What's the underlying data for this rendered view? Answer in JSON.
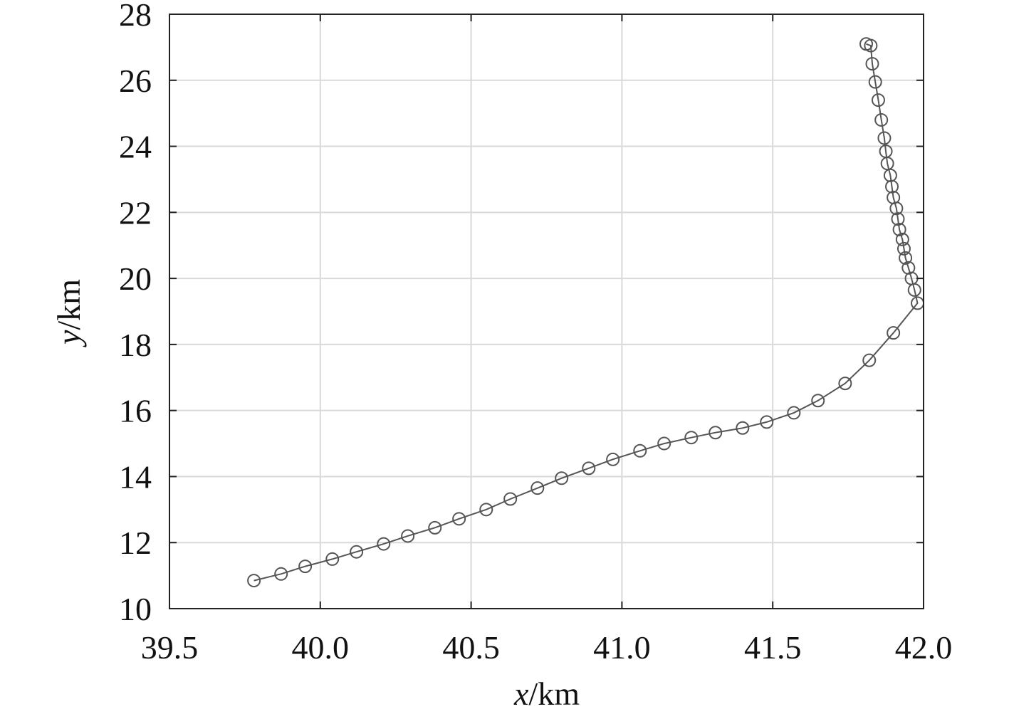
{
  "chart_data": {
    "type": "line",
    "title": "",
    "xlabel_var": "x",
    "xlabel_unit": "/km",
    "ylabel_var": "y",
    "ylabel_unit": "/km",
    "xlim": [
      39.5,
      42.0
    ],
    "ylim": [
      10,
      28
    ],
    "xticks": [
      "39.5",
      "40.0",
      "40.5",
      "41.0",
      "41.5",
      "42.0"
    ],
    "yticks": [
      "10",
      "12",
      "14",
      "16",
      "18",
      "20",
      "22",
      "24",
      "26",
      "28"
    ],
    "grid": true,
    "legend": "none",
    "colors": {
      "line": "#555555",
      "grid": "#d9d9d9",
      "axis": "#222222"
    },
    "series": [
      {
        "marker": "circle",
        "x": [
          39.78,
          39.87,
          39.95,
          40.04,
          40.12,
          40.21,
          40.29,
          40.38,
          40.46,
          40.55,
          40.63,
          40.72,
          40.8,
          40.89,
          40.97,
          41.06,
          41.14,
          41.23,
          41.31,
          41.4,
          41.48,
          41.57,
          41.65,
          41.74,
          41.82,
          41.9,
          41.98,
          41.97,
          41.96,
          41.95,
          41.94,
          41.935,
          41.93,
          41.92,
          41.915,
          41.91,
          41.9,
          41.895,
          41.89,
          41.88,
          41.875,
          41.87,
          41.86,
          41.85,
          41.84,
          41.83,
          41.825,
          41.81
        ],
        "y": [
          10.85,
          11.05,
          11.28,
          11.5,
          11.72,
          11.96,
          12.2,
          12.45,
          12.72,
          13.0,
          13.32,
          13.65,
          13.95,
          14.25,
          14.52,
          14.78,
          15.0,
          15.18,
          15.33,
          15.47,
          15.65,
          15.93,
          16.3,
          16.82,
          17.52,
          18.35,
          19.25,
          19.65,
          20.0,
          20.32,
          20.62,
          20.9,
          21.18,
          21.48,
          21.8,
          22.12,
          22.45,
          22.78,
          23.12,
          23.48,
          23.85,
          24.25,
          24.8,
          25.4,
          25.95,
          26.5,
          27.05,
          27.1
        ]
      }
    ]
  }
}
